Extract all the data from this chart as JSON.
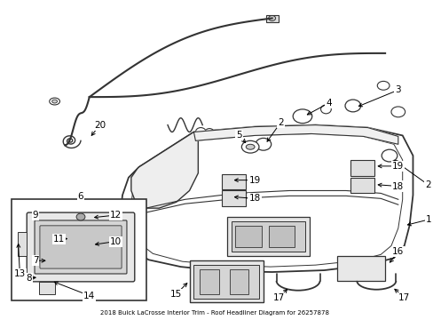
{
  "title": "2018 Buick LaCrosse Interior Trim - Roof Headliner Diagram for 26257878",
  "bg_color": "#ffffff",
  "line_color": "#333333",
  "text_color": "#000000",
  "figsize": [
    4.89,
    3.6
  ],
  "dpi": 100
}
